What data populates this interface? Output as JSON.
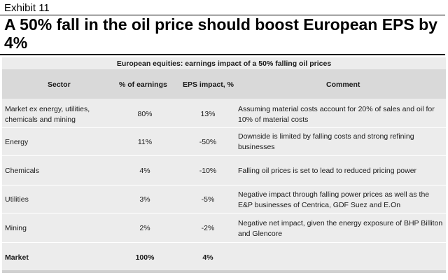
{
  "exhibit": {
    "label": "Exhibit 11"
  },
  "headline": "A 50% fall in the oil price should boost European EPS by 4%",
  "table": {
    "caption": "European equities: earnings impact of a 50% falling oil prices",
    "headers": {
      "sector": "Sector",
      "pct_earnings": "% of earnings",
      "eps_impact": "EPS impact, %",
      "comment": "Comment"
    },
    "rows": [
      {
        "sector": "Market ex energy, utilities, chemicals and mining",
        "pct": "80%",
        "eps": "13%",
        "comment": "Assuming material costs account for 20% of sales and oil for 10% of material costs"
      },
      {
        "sector": "Energy",
        "pct": "11%",
        "eps": "-50%",
        "comment": "Downside is limited by falling costs and strong refining businesses"
      },
      {
        "sector": "Chemicals",
        "pct": "4%",
        "eps": "-10%",
        "comment": "Falling oil prices is set to lead to reduced pricing power"
      },
      {
        "sector": "Utilities",
        "pct": "3%",
        "eps": "-5%",
        "comment": "Negative impact through falling power prices as well as the E&P businesses of Centrica, GDF Suez and E.On"
      },
      {
        "sector": "Mining",
        "pct": "2%",
        "eps": "-2%",
        "comment": "Negative net impact, given the energy exposure of BHP Billiton and Glencore"
      }
    ],
    "total": {
      "sector": "Market",
      "pct": "100%",
      "eps": "4%",
      "comment": ""
    }
  }
}
